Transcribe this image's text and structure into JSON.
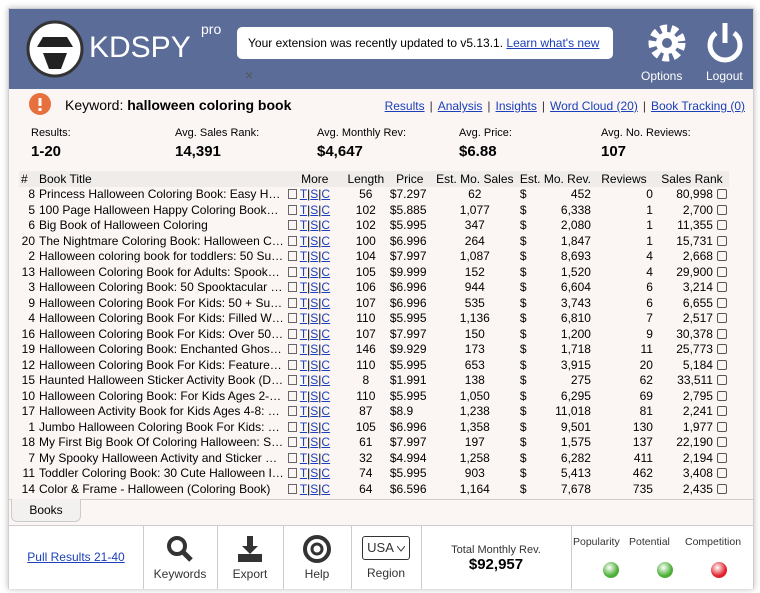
{
  "header": {
    "logo": "KDSPY",
    "logo_badge": "pro",
    "notice": "Your extension was recently updated to v5.13.1.",
    "notice_link": "Learn what's new",
    "notice_close": "×",
    "options": "Options",
    "logout": "Logout"
  },
  "keyword_bar": {
    "label": "Keyword:",
    "keyword": "halloween coloring book",
    "nav": [
      "Results",
      "Analysis",
      "Insights",
      "Word Cloud (20)",
      "Book Tracking (0)"
    ]
  },
  "summary": [
    {
      "label": "Results:",
      "value": "1-20"
    },
    {
      "label": "Avg. Sales Rank:",
      "value": "14,391"
    },
    {
      "label": "Avg. Monthly Rev:",
      "value": "$4,647"
    },
    {
      "label": "Avg. Price:",
      "value": "$6.88"
    },
    {
      "label": "Avg. No. Reviews:",
      "value": "107"
    }
  ],
  "table": {
    "headers": [
      "#",
      "Book Title",
      "More",
      "Length",
      "Price",
      "Est. Mo. Sales",
      "Est. Mo. Rev.",
      "Reviews",
      "Sales Rank"
    ],
    "more_links": [
      "T",
      "S",
      "C"
    ],
    "currency": "$",
    "rows": [
      [
        "8",
        "Princess Halloween Coloring Book: Easy H…",
        "56",
        "$7.297",
        "62",
        "452",
        "0",
        "80,998"
      ],
      [
        "5",
        "100 Page Halloween Happy Coloring Book…",
        "102",
        "$5.885",
        "1,077",
        "6,338",
        "1",
        "2,700"
      ],
      [
        "6",
        "Big Book of Halloween Coloring",
        "102",
        "$5.995",
        "347",
        "2,080",
        "1",
        "11,355"
      ],
      [
        "20",
        "The Nightmare Coloring Book: Halloween C…",
        "100",
        "$6.996",
        "264",
        "1,847",
        "1",
        "15,731"
      ],
      [
        "2",
        "Halloween coloring book for toddlers: 50 Su…",
        "104",
        "$7.997",
        "1,087",
        "8,693",
        "4",
        "2,668"
      ],
      [
        "13",
        "Halloween Coloring Book for Adults: Spook…",
        "105",
        "$9.999",
        "152",
        "1,520",
        "4",
        "29,900"
      ],
      [
        "3",
        "Halloween Coloring Book: 50 Spooktacular …",
        "106",
        "$6.996",
        "944",
        "6,604",
        "6",
        "3,214"
      ],
      [
        "9",
        "Halloween Coloring Book For Kids: 50 + Su…",
        "107",
        "$6.996",
        "535",
        "3,743",
        "6",
        "6,655"
      ],
      [
        "4",
        "Halloween Coloring Book For Kids: Filled W…",
        "110",
        "$5.995",
        "1,136",
        "6,810",
        "7",
        "2,517"
      ],
      [
        "16",
        "Halloween Coloring Book For Kids: Over 50…",
        "107",
        "$7.997",
        "150",
        "1,200",
        "9",
        "30,378"
      ],
      [
        "19",
        "Halloween Coloring Book: Enchanted Ghos…",
        "146",
        "$9.929",
        "173",
        "1,718",
        "11",
        "25,773"
      ],
      [
        "12",
        "Halloween Coloring Book For Kids: Feature…",
        "110",
        "$5.995",
        "653",
        "3,915",
        "20",
        "5,184"
      ],
      [
        "15",
        "Haunted Halloween Sticker Activity Book (D…",
        "8",
        "$1.991",
        "138",
        "275",
        "62",
        "33,511"
      ],
      [
        "10",
        "Halloween Coloring Book: For Kids Ages 2-…",
        "110",
        "$5.995",
        "1,050",
        "6,295",
        "69",
        "2,795"
      ],
      [
        "17",
        "Halloween Activity Book for Kids Ages 4-8: …",
        "87",
        "$8.9",
        "1,238",
        "11,018",
        "81",
        "2,241"
      ],
      [
        "1",
        "Jumbo Halloween Coloring Book For Kids: …",
        "105",
        "$6.996",
        "1,358",
        "9,501",
        "130",
        "1,977"
      ],
      [
        "18",
        "My First Big Book Of Coloring Halloween: S…",
        "61",
        "$7.997",
        "197",
        "1,575",
        "137",
        "22,190"
      ],
      [
        "7",
        "My Spooky Halloween Activity and Sticker …",
        "32",
        "$4.994",
        "1,258",
        "6,282",
        "411",
        "2,194"
      ],
      [
        "11",
        "Toddler Coloring Book: 30 Cute Halloween I…",
        "74",
        "$5.995",
        "903",
        "5,413",
        "462",
        "3,408"
      ],
      [
        "14",
        "Color & Frame - Halloween (Coloring Book)",
        "64",
        "$6.596",
        "1,164",
        "7,678",
        "735",
        "2,435"
      ]
    ]
  },
  "tabs": [
    "Books"
  ],
  "footer": {
    "pull": "Pull Results 21-40",
    "keywords": "Keywords",
    "export": "Export",
    "help": "Help",
    "region_value": "USA",
    "region": "Region",
    "total_label": "Total Monthly Rev.",
    "total_value": "$92,957",
    "indicators": [
      "Popularity",
      "Potential",
      "Competition"
    ]
  }
}
